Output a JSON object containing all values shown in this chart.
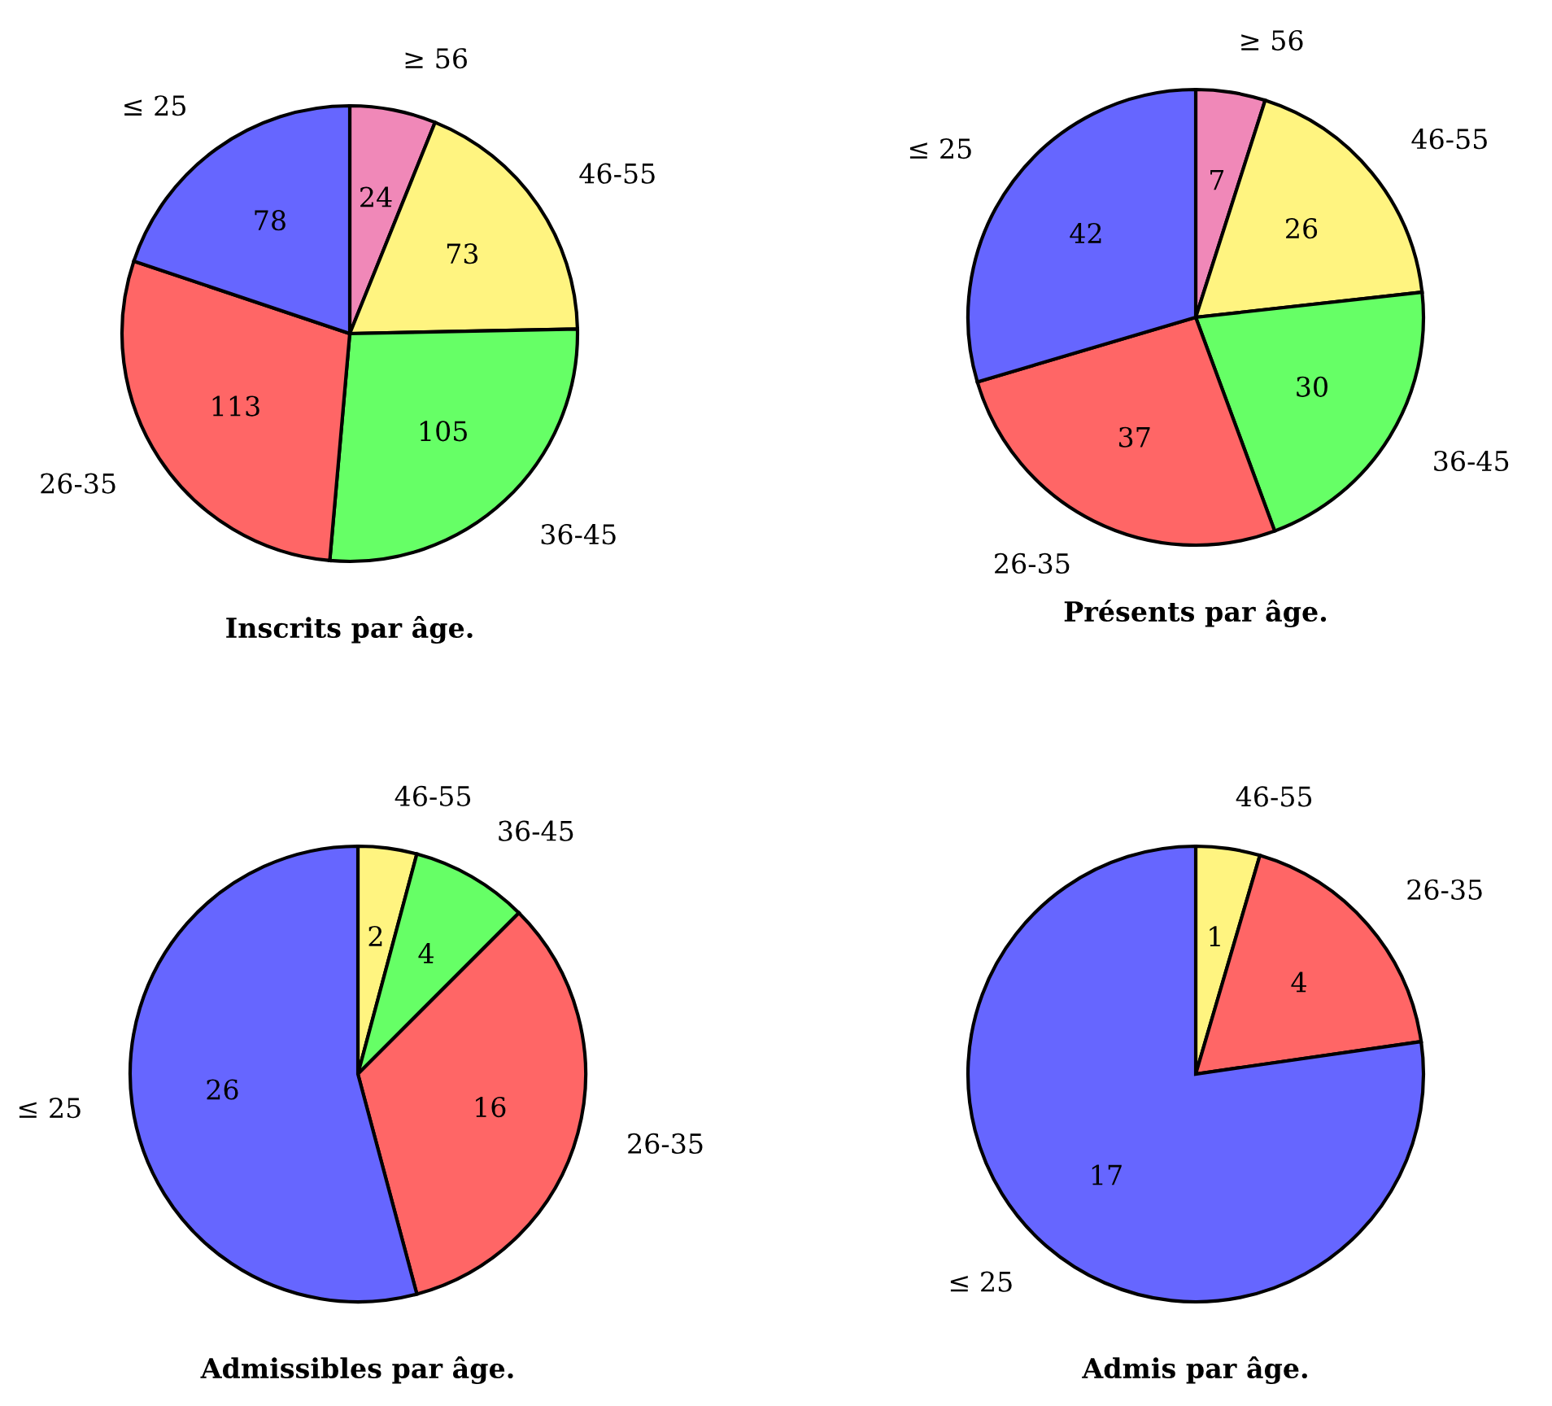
{
  "chart_data": [
    {
      "type": "pie",
      "title": "Inscrits par âge.",
      "categories": [
        "≥ 56",
        "46-55",
        "36-45",
        "26-35",
        "≤ 25"
      ],
      "values": [
        24,
        73,
        105,
        113,
        78
      ],
      "colors": [
        "#f088b8",
        "#fff480",
        "#66ff66",
        "#ff6666",
        "#6666ff"
      ],
      "data_labels": true
    },
    {
      "type": "pie",
      "title": "Présents par âge.",
      "categories": [
        "≥ 56",
        "46-55",
        "36-45",
        "26-35",
        "≤ 25"
      ],
      "values": [
        7,
        26,
        30,
        37,
        42
      ],
      "colors": [
        "#f088b8",
        "#fff480",
        "#66ff66",
        "#ff6666",
        "#6666ff"
      ],
      "data_labels": true
    },
    {
      "type": "pie",
      "title": "Admissibles par âge.",
      "categories": [
        "46-55",
        "36-45",
        "26-35",
        "≤ 25"
      ],
      "values": [
        2,
        4,
        16,
        26
      ],
      "colors": [
        "#fff480",
        "#66ff66",
        "#ff6666",
        "#6666ff"
      ],
      "data_labels": true
    },
    {
      "type": "pie",
      "title": "Admis par âge.",
      "categories": [
        "46-55",
        "26-35",
        "≤ 25"
      ],
      "values": [
        1,
        4,
        17
      ],
      "colors": [
        "#fff480",
        "#ff6666",
        "#6666ff"
      ],
      "data_labels": true
    }
  ]
}
